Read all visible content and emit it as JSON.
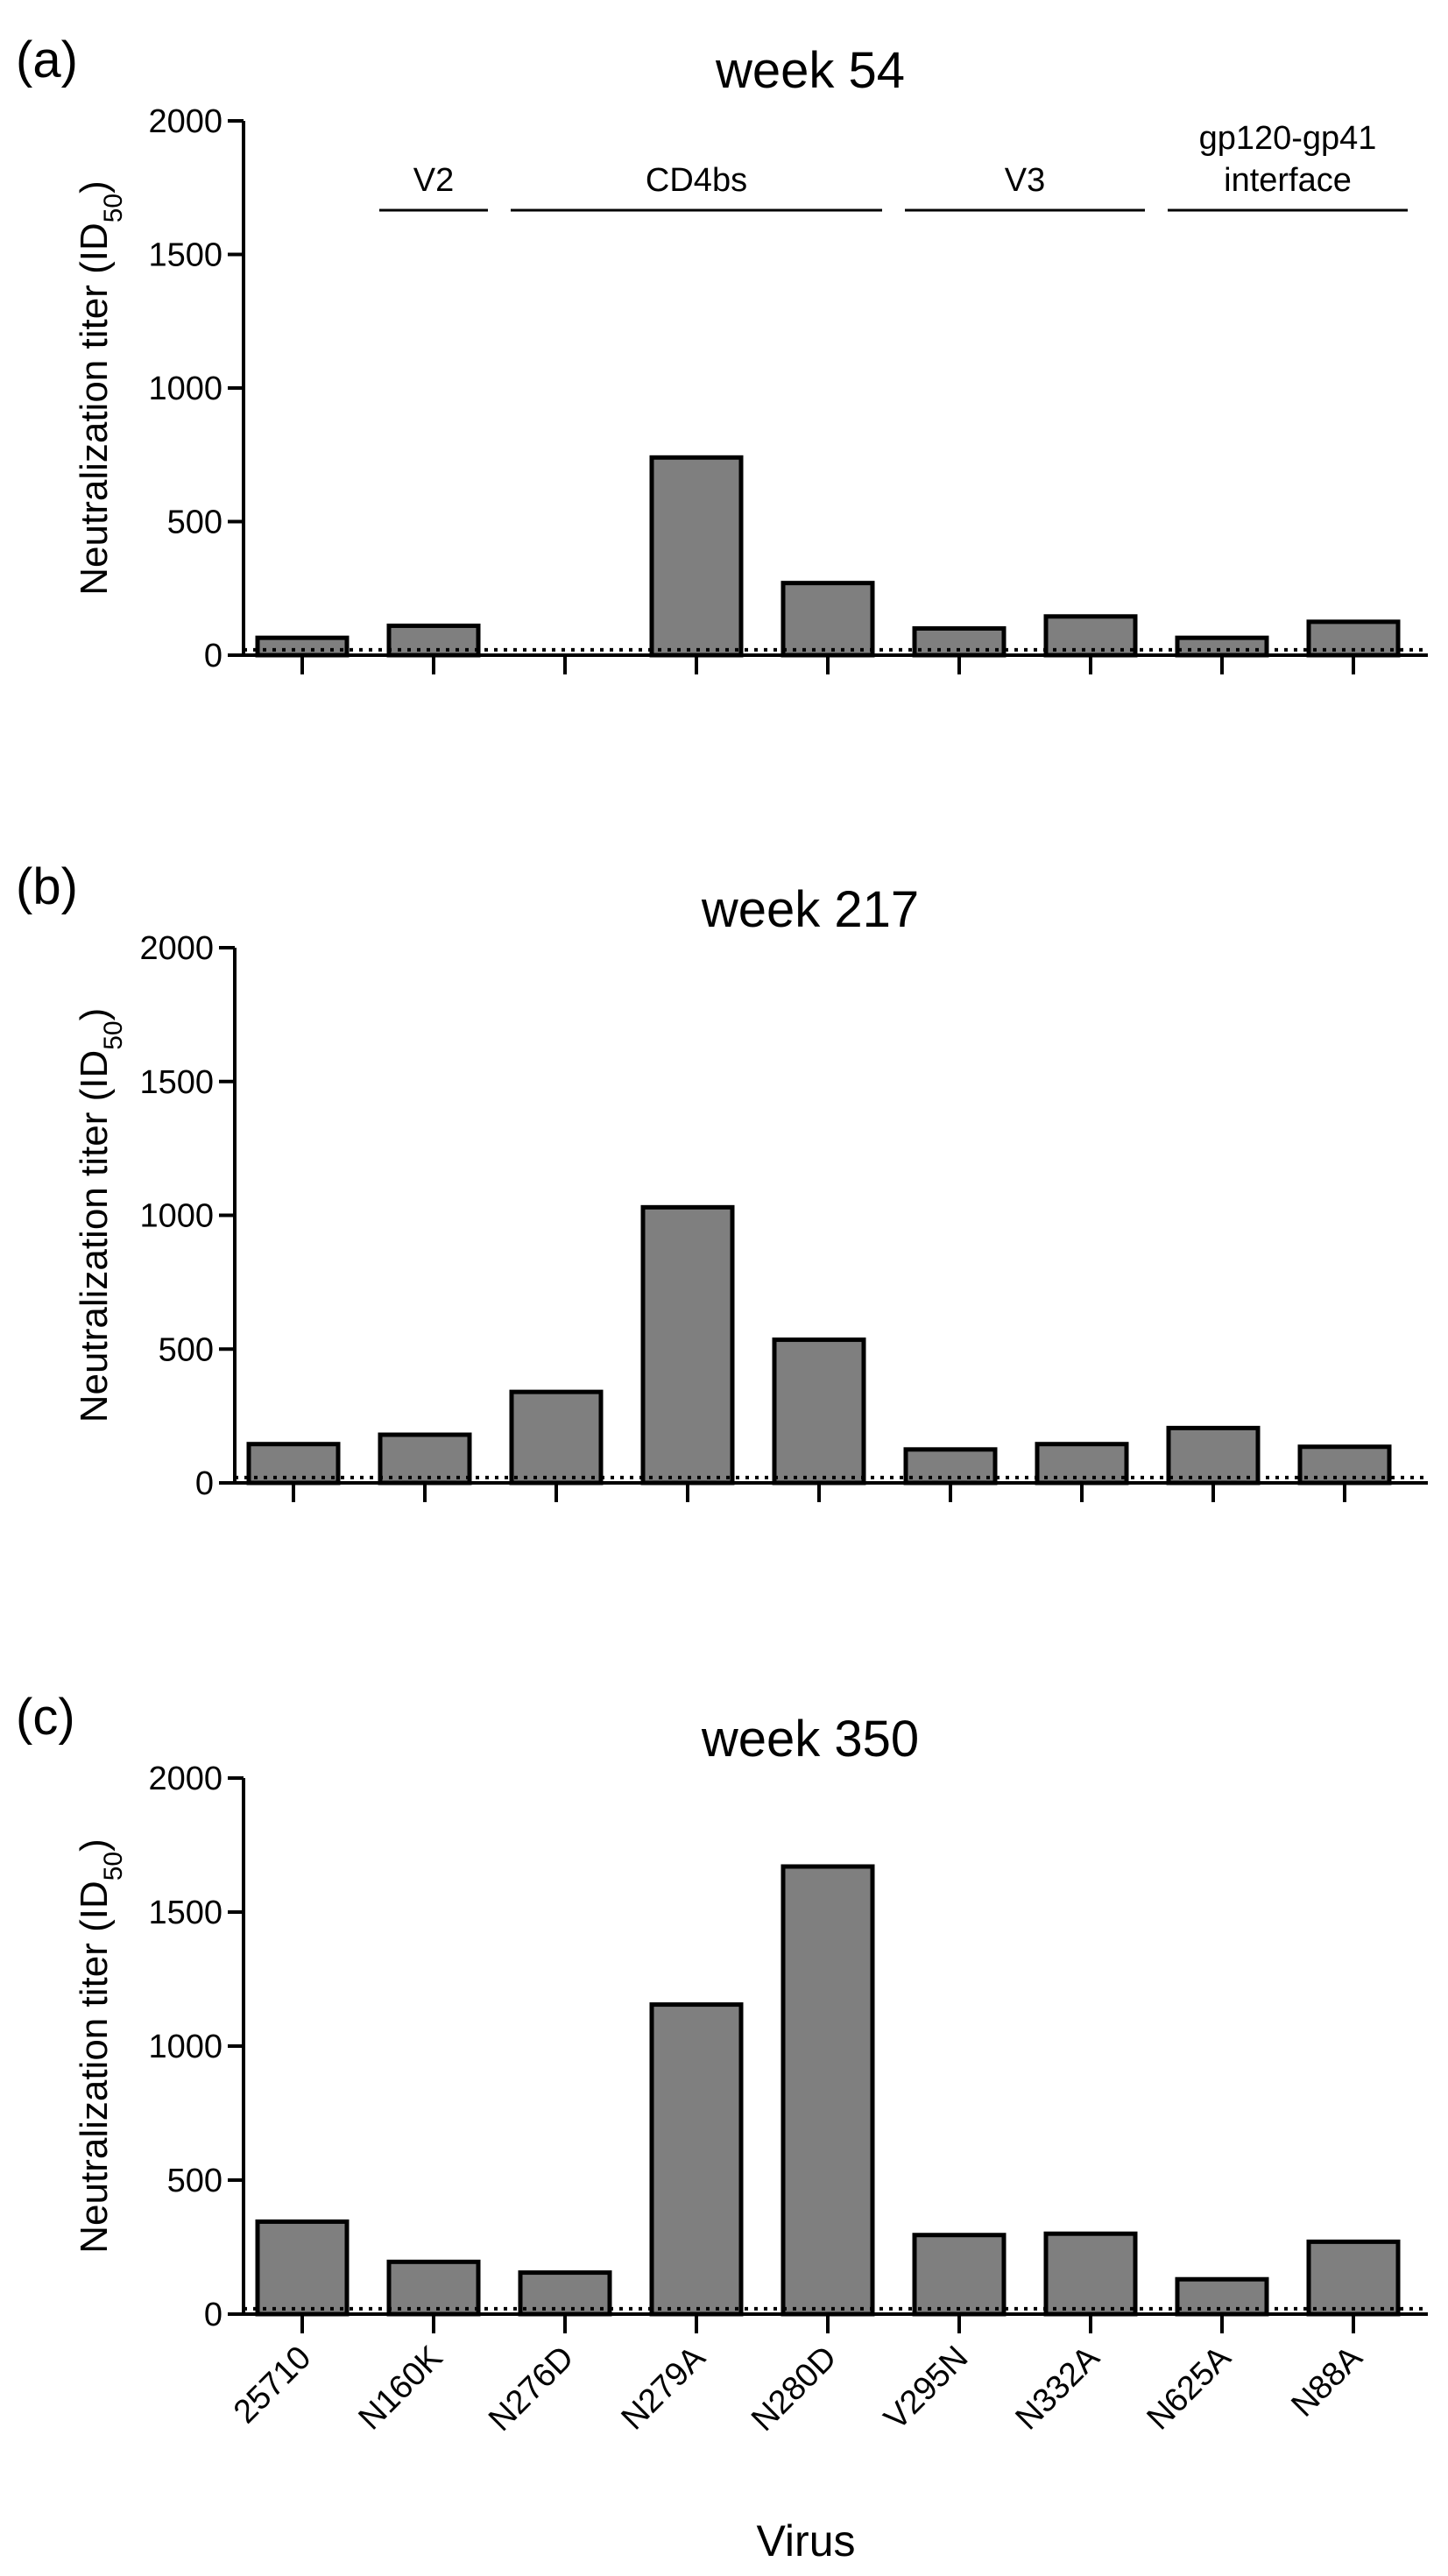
{
  "colors": {
    "bar_fill": "#7f7f7f",
    "bar_stroke": "#000000"
  },
  "chart_data": [
    {
      "type": "bar",
      "panel": "(a)",
      "title": "week 54",
      "ylabel": "Neutralization titer (ID",
      "ylabel_sub": "50",
      "ylabel_close": ")",
      "ylim": [
        0,
        2000
      ],
      "yticks": [
        0,
        500,
        1000,
        1500,
        2000
      ],
      "categories": [
        "25710",
        "N160K",
        "N276D",
        "N279A",
        "N280D",
        "V295N",
        "N332A",
        "N625A",
        "N88A"
      ],
      "values": [
        65,
        110,
        0,
        740,
        270,
        100,
        145,
        65,
        125
      ],
      "threshold": 20,
      "groups": [
        {
          "label": "V2",
          "from": 1,
          "to": 1
        },
        {
          "label": "CD4bs",
          "from": 2,
          "to": 4
        },
        {
          "label": "V3",
          "from": 5,
          "to": 6
        },
        {
          "label": [
            "gp120-gp41",
            "interface"
          ],
          "from": 7,
          "to": 8
        }
      ]
    },
    {
      "type": "bar",
      "panel": "(b)",
      "title": "week 217",
      "ylabel": "Neutralization titer (ID",
      "ylabel_sub": "50",
      "ylabel_close": ")",
      "ylim": [
        0,
        2000
      ],
      "yticks": [
        0,
        500,
        1000,
        1500,
        2000
      ],
      "categories": [
        "25710",
        "N160K",
        "N276D",
        "N279A",
        "N280D",
        "V295N",
        "N332A",
        "N625A",
        "N88A"
      ],
      "values": [
        145,
        180,
        340,
        1030,
        535,
        125,
        145,
        205,
        135
      ],
      "threshold": 20
    },
    {
      "type": "bar",
      "panel": "(c)",
      "title": "week 350",
      "ylabel": "Neutralization titer (ID",
      "ylabel_sub": "50",
      "ylabel_close": ")",
      "xlabel": "Virus",
      "ylim": [
        0,
        2000
      ],
      "yticks": [
        0,
        500,
        1000,
        1500,
        2000
      ],
      "categories": [
        "25710",
        "N160K",
        "N276D",
        "N279A",
        "N280D",
        "V295N",
        "N332A",
        "N625A",
        "N88A"
      ],
      "values": [
        345,
        195,
        155,
        1155,
        1670,
        295,
        300,
        130,
        270
      ],
      "threshold": 20,
      "show_xtick_labels": true
    }
  ]
}
